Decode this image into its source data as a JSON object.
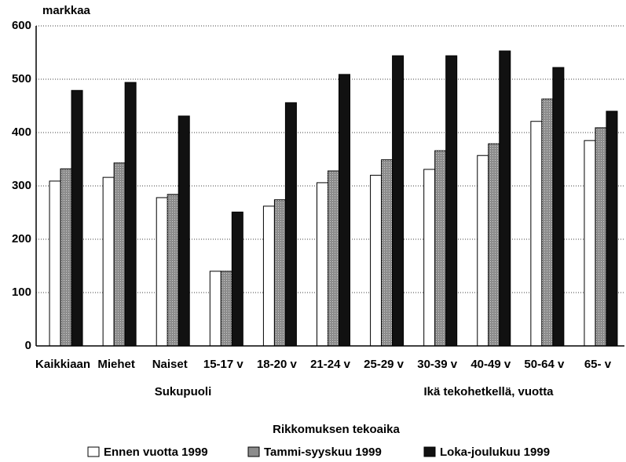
{
  "chart_data": {
    "type": "bar",
    "ylabel": "markkaa",
    "categories": [
      "Kaikkiaan",
      "Miehet",
      "Naiset",
      "15-17 v",
      "18-20 v",
      "21-24 v",
      "25-29 v",
      "30-39 v",
      "40-49 v",
      "50-64 v",
      "65- v"
    ],
    "groups": [
      "Sukupuoli",
      "Ikä tekohetkellä, vuotta"
    ],
    "legend_title": "Rikkomuksen tekoaika",
    "series": [
      {
        "name": "Ennen vuotta 1999",
        "color": "#ffffff",
        "values": [
          309,
          316,
          278,
          140,
          262,
          306,
          320,
          331,
          357,
          421,
          385
        ]
      },
      {
        "name": "Tammi-syyskuu 1999",
        "color": "#8c8c8c",
        "values": [
          332,
          343,
          284,
          140,
          274,
          328,
          349,
          366,
          379,
          463,
          409
        ]
      },
      {
        "name": "Loka-joulukuu 1999",
        "color": "#111111",
        "values": [
          479,
          494,
          431,
          251,
          456,
          509,
          544,
          544,
          553,
          522,
          440
        ]
      }
    ],
    "ylim": [
      0,
      600
    ],
    "yticks": [
      0,
      100,
      200,
      300,
      400,
      500,
      600
    ],
    "grid": true
  }
}
